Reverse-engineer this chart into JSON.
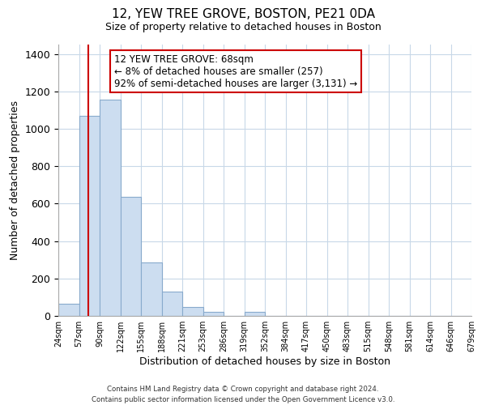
{
  "title": "12, YEW TREE GROVE, BOSTON, PE21 0DA",
  "subtitle": "Size of property relative to detached houses in Boston",
  "xlabel": "Distribution of detached houses by size in Boston",
  "ylabel": "Number of detached properties",
  "bar_color": "#ccddf0",
  "bar_edge_color": "#88aacc",
  "vline_color": "#cc0000",
  "vline_x": 1.47,
  "bins": [
    "24sqm",
    "57sqm",
    "90sqm",
    "122sqm",
    "155sqm",
    "188sqm",
    "221sqm",
    "253sqm",
    "286sqm",
    "319sqm",
    "352sqm",
    "384sqm",
    "417sqm",
    "450sqm",
    "483sqm",
    "515sqm",
    "548sqm",
    "581sqm",
    "614sqm",
    "646sqm",
    "679sqm"
  ],
  "values": [
    65,
    1070,
    1155,
    635,
    285,
    130,
    48,
    20,
    0,
    20,
    0,
    0,
    0,
    0,
    0,
    0,
    0,
    0,
    0,
    0
  ],
  "ylim": [
    0,
    1450
  ],
  "yticks": [
    0,
    200,
    400,
    600,
    800,
    1000,
    1200,
    1400
  ],
  "annotation_line1": "12 YEW TREE GROVE: 68sqm",
  "annotation_line2": "← 8% of detached houses are smaller (257)",
  "annotation_line3": "92% of semi-detached houses are larger (3,131) →",
  "footer_line1": "Contains HM Land Registry data © Crown copyright and database right 2024.",
  "footer_line2": "Contains public sector information licensed under the Open Government Licence v3.0.",
  "background_color": "#ffffff",
  "grid_color": "#c8d8e8"
}
